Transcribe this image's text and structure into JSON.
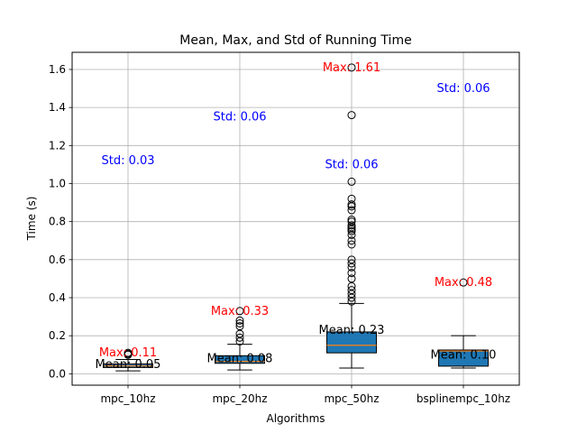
{
  "chart_data": {
    "type": "box",
    "title": "Mean, Max, and Std of Running Time",
    "xlabel": "Algorithms",
    "ylabel": "Time (s)",
    "ylim": [
      -0.06,
      1.69
    ],
    "yticks": [
      0.0,
      0.2,
      0.4,
      0.6,
      0.8,
      1.0,
      1.2,
      1.4,
      1.6
    ],
    "ytick_labels": [
      "0.0",
      "0.2",
      "0.4",
      "0.6",
      "0.8",
      "1.0",
      "1.2",
      "1.4",
      "1.6"
    ],
    "grid": true,
    "colors": {
      "box_fill": "#1f77b4",
      "median": "#ff7f0e",
      "max_text": "#ff0000",
      "std_text": "#0000ff",
      "mean_text": "#000000",
      "grid": "#b0b0b0"
    },
    "categories": [
      "mpc_10hz",
      "mpc_20hz",
      "mpc_50hz",
      "bsplinempc_10hz"
    ],
    "boxes": [
      {
        "q1": 0.033,
        "median": 0.041,
        "q3": 0.052,
        "whisker_low": 0.015,
        "whisker_high": 0.075,
        "outliers": [
          0.1,
          0.105,
          0.11
        ]
      },
      {
        "q1": 0.055,
        "median": 0.065,
        "q3": 0.095,
        "whisker_low": 0.02,
        "whisker_high": 0.155,
        "outliers": [
          0.17,
          0.19,
          0.21,
          0.25,
          0.265,
          0.28,
          0.33
        ]
      },
      {
        "q1": 0.11,
        "median": 0.15,
        "q3": 0.22,
        "whisker_low": 0.03,
        "whisker_high": 0.37,
        "outliers": [
          0.38,
          0.4,
          0.42,
          0.44,
          0.46,
          0.5,
          0.53,
          0.56,
          0.58,
          0.6,
          0.68,
          0.7,
          0.73,
          0.75,
          0.76,
          0.77,
          0.78,
          0.8,
          0.81,
          0.86,
          0.88,
          0.89,
          0.92,
          1.01,
          1.36,
          1.61
        ]
      },
      {
        "q1": 0.04,
        "median": 0.12,
        "q3": 0.125,
        "whisker_low": 0.03,
        "whisker_high": 0.2,
        "outliers": [
          0.48
        ]
      }
    ],
    "annotations": [
      {
        "mean_label": "Mean: 0.05",
        "max_label": "Max: 0.11",
        "std_label": "Std: 0.03",
        "mean": 0.05,
        "max": 0.11,
        "std_y": 1.12
      },
      {
        "mean_label": "Mean: 0.08",
        "max_label": "Max: 0.33",
        "std_label": "Std: 0.06",
        "mean": 0.08,
        "max": 0.33,
        "std_y": 1.35
      },
      {
        "mean_label": "Mean: 0.23",
        "max_label": "Max: 1.61",
        "std_label": "Std: 0.06",
        "mean": 0.23,
        "max": 1.61,
        "std_y": 1.1
      },
      {
        "mean_label": "Mean: 0.10",
        "max_label": "Max: 0.48",
        "std_label": "Std: 0.06",
        "mean": 0.1,
        "max": 0.48,
        "std_y": 1.5
      }
    ]
  }
}
